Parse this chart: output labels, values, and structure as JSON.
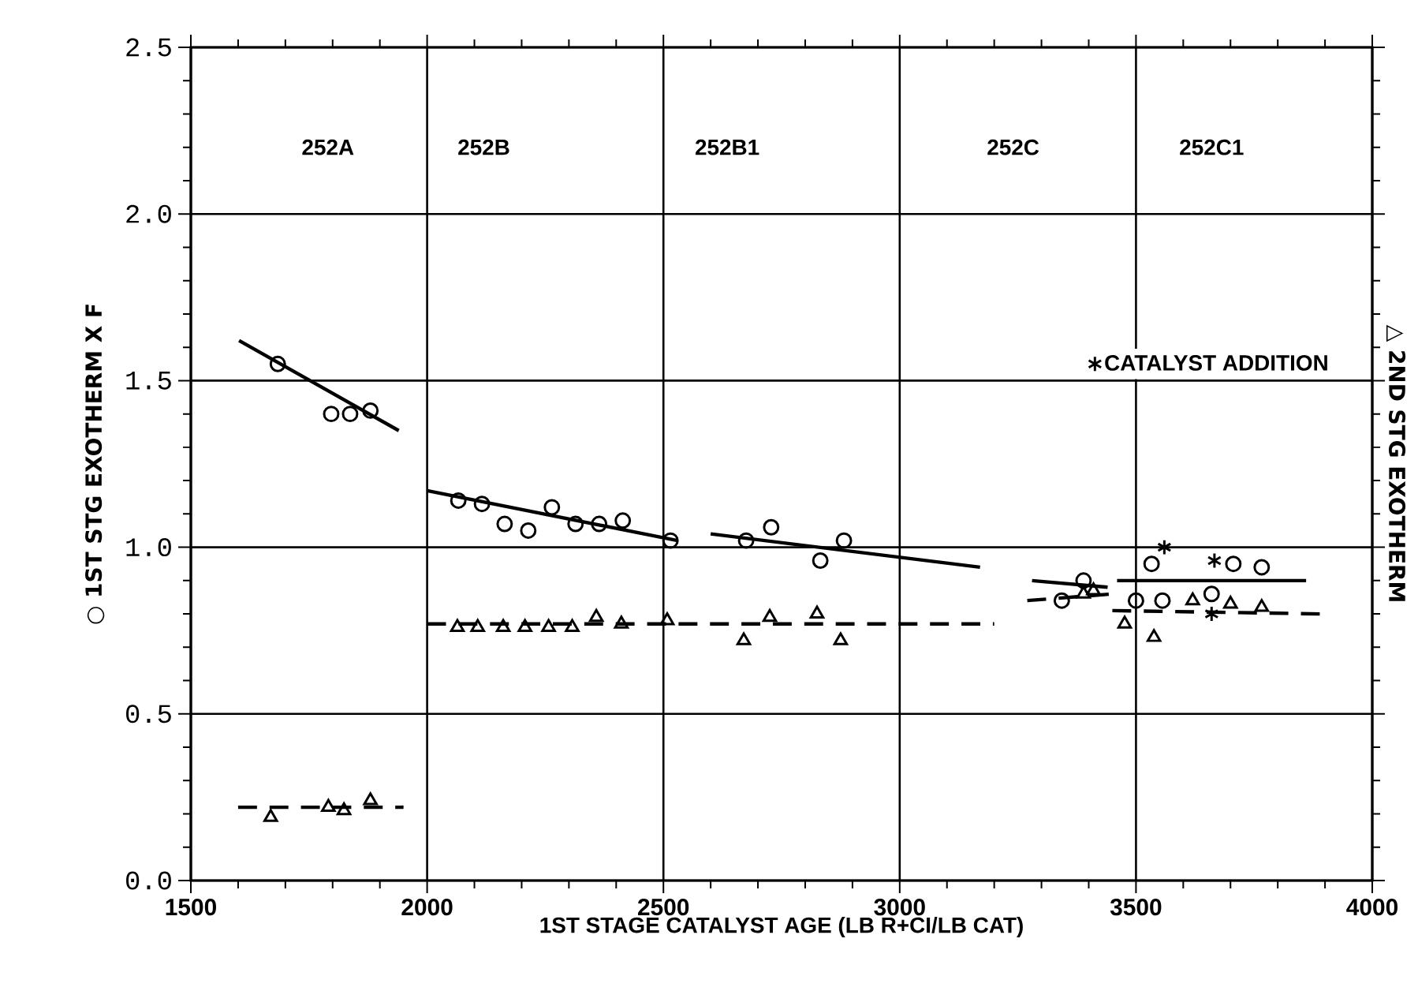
{
  "chart_data": {
    "type": "scatter",
    "xlabel": "1ST STAGE CATALYST AGE (LB R+CI/LB CAT)",
    "ylabel": "○ 1ST STG EXOTHERM X F",
    "y2label": "△ 2ND STG EXOTHERM",
    "xlim": [
      1500,
      4000
    ],
    "xticks": [
      1500,
      2000,
      2500,
      3000,
      3500,
      4000
    ],
    "ylim": [
      0,
      2.5
    ],
    "yticks": [
      {
        "value": 0,
        "label": "0.0"
      },
      {
        "value": 0.5,
        "label": "0.5"
      },
      {
        "value": 1,
        "label": "1.0"
      },
      {
        "value": 1.5,
        "label": "1.5"
      },
      {
        "value": 2,
        "label": "2.0"
      },
      {
        "value": 2.5,
        "label": "2.5"
      }
    ],
    "grid": true,
    "legend": "right",
    "annotations": [
      "252A",
      "252B",
      "252B1",
      "252C",
      "252C1"
    ],
    "series": [
      {
        "type": "scatter",
        "marker": "circle",
        "color": "#000000",
        "x": [
          1684,
          1797,
          1837,
          1880,
          2066,
          2116,
          2164,
          2214,
          2264,
          2314,
          2364,
          2414,
          2515,
          2675,
          2728,
          2832,
          2882,
          3343,
          3389,
          3500,
          3533,
          3556,
          3660,
          3706,
          3766
        ],
        "values": [
          1.55,
          1.4,
          1.4,
          1.41,
          1.14,
          1.13,
          1.07,
          1.05,
          1.12,
          1.07,
          1.07,
          1.08,
          1.02,
          1.02,
          1.06,
          0.96,
          1.02,
          0.84,
          0.9,
          0.84,
          0.95,
          0.84,
          0.86,
          0.95,
          0.94
        ]
      },
      {
        "type": "scatter",
        "marker": "triangle",
        "color": "#000000",
        "x": [
          1669,
          1791,
          1824,
          1880,
          2064,
          2107,
          2161,
          2207,
          2257,
          2307,
          2358,
          2411,
          2508,
          2670,
          2725,
          2825,
          2875,
          3389,
          3410,
          3476,
          3538,
          3620,
          3700,
          3766
        ],
        "values": [
          0.19,
          0.22,
          0.21,
          0.24,
          0.76,
          0.76,
          0.76,
          0.76,
          0.76,
          0.76,
          0.79,
          0.77,
          0.78,
          0.72,
          0.79,
          0.8,
          0.72,
          0.86,
          0.87,
          0.77,
          0.73,
          0.84,
          0.83,
          0.82
        ]
      },
      {
        "type": "scatter",
        "marker": "cross",
        "color": "#000000",
        "name": "CATALYST ADDITION",
        "x": [
          3560,
          3666,
          3660
        ],
        "values": [
          1.0,
          0.96,
          0.8
        ]
      },
      {
        "type": "line",
        "line_style": "solid",
        "color": "#000000",
        "x": [
          1602,
          1940
        ],
        "values": [
          1.62,
          1.35
        ]
      },
      {
        "type": "line",
        "line_style": "solid",
        "color": "#000000",
        "x": [
          2000,
          2530
        ],
        "values": [
          1.17,
          1.02
        ]
      },
      {
        "type": "line",
        "line_style": "solid",
        "color": "#000000",
        "x": [
          2600,
          3170
        ],
        "values": [
          1.04,
          0.94
        ]
      },
      {
        "type": "line",
        "line_style": "solid",
        "color": "#000000",
        "x": [
          3280,
          3440
        ],
        "values": [
          0.9,
          0.88
        ]
      },
      {
        "type": "line",
        "line_style": "solid",
        "color": "#000000",
        "x": [
          3460,
          3860
        ],
        "values": [
          0.9,
          0.9
        ]
      },
      {
        "type": "line",
        "line_style": "dashed",
        "color": "#000000",
        "x": [
          1600,
          1950
        ],
        "values": [
          0.22,
          0.22
        ]
      },
      {
        "type": "line",
        "line_style": "dashed",
        "color": "#000000",
        "x": [
          2000,
          3200
        ],
        "values": [
          0.77,
          0.77
        ]
      },
      {
        "type": "line",
        "line_style": "dashed",
        "color": "#000000",
        "x": [
          3270,
          3450
        ],
        "values": [
          0.84,
          0.86
        ]
      },
      {
        "type": "line",
        "line_style": "dashed",
        "color": "#000000",
        "x": [
          3450,
          3890
        ],
        "values": [
          0.81,
          0.8
        ]
      }
    ]
  }
}
